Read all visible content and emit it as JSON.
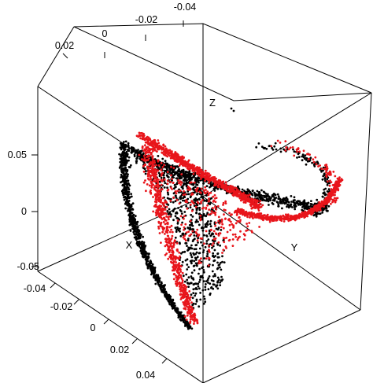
{
  "chart_data": {
    "type": "scatter",
    "projection": "3d",
    "colors": {
      "series_1": "#000000",
      "series_2": "#e8151b"
    },
    "axis_names": {
      "x": "X",
      "y": "Y",
      "z": "Z"
    },
    "tick_labels": {
      "top": [
        "-0.04",
        "-0.02",
        "0",
        "0.02"
      ],
      "left": [
        "0.05",
        "0",
        "-0.05"
      ],
      "bottom": [
        "-0.04",
        "-0.02",
        "0",
        "0.02",
        "0.04"
      ]
    },
    "ranges": {
      "x": [
        -0.05,
        0.05
      ],
      "y": [
        -0.05,
        0.05
      ],
      "z": [
        -0.07,
        0.07
      ]
    },
    "series": [
      {
        "color": "#000000",
        "point_count": 2600
      },
      {
        "color": "#e8151b",
        "point_count": 2200
      }
    ]
  }
}
